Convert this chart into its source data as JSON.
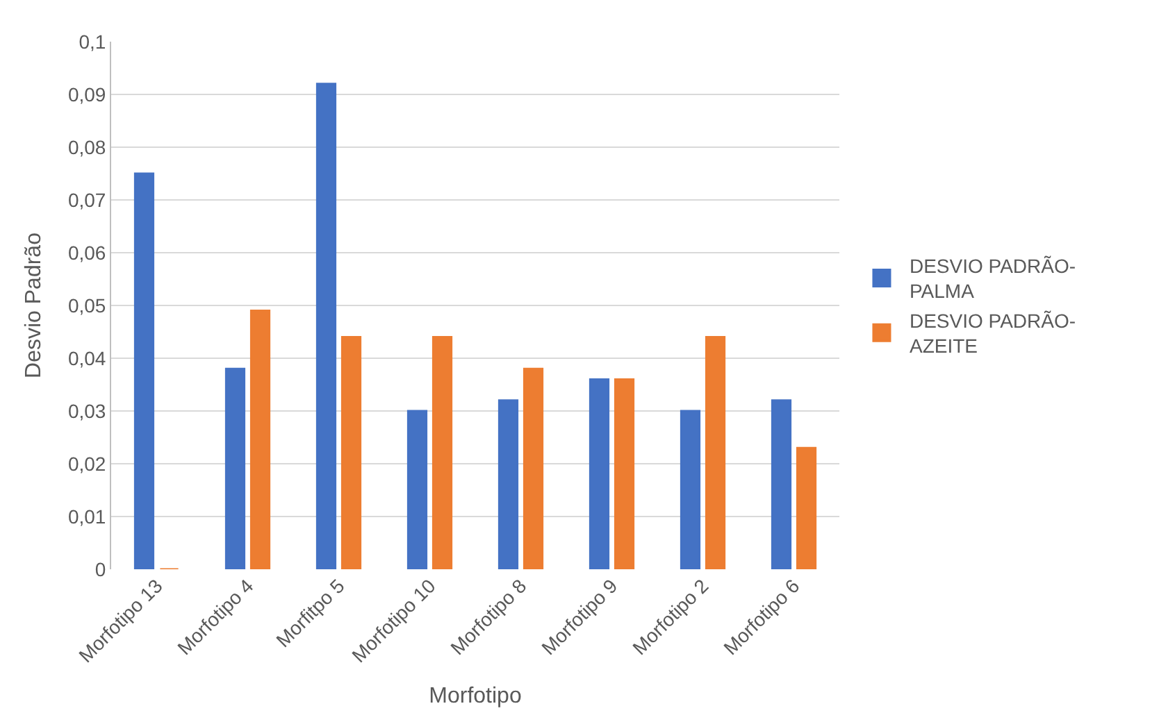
{
  "chart_data": {
    "type": "bar",
    "xlabel": "Morfotipo",
    "ylabel": "Desvio Padrão",
    "categories": [
      "Morfotipo 13",
      "Morfotipo 4",
      "Morfitpo 5",
      "Morfotipo 10",
      "Morfotipo 8",
      "Morfotipo 9",
      "Morfotipo 2",
      "Morfotipo 6"
    ],
    "series": [
      {
        "name": "DESVIO PADRÃO-PALMA",
        "color": "#4472c4",
        "values": [
          0.075,
          0.038,
          0.092,
          0.03,
          0.032,
          0.036,
          0.03,
          0.032
        ]
      },
      {
        "name": "DESVIO PADRÃO-AZEITE",
        "color": "#ed7d31",
        "values": [
          0,
          0.049,
          0.044,
          0.044,
          0.038,
          0.036,
          0.044,
          0.023
        ]
      }
    ],
    "ylim": [
      0,
      0.1
    ],
    "yticks": [
      0,
      {
        "value": 0.01,
        "label": "0,01"
      },
      {
        "value": 0.02,
        "label": "0,02"
      },
      {
        "value": 0.03,
        "label": "0,03"
      },
      {
        "value": 0.04,
        "label": "0,04"
      },
      {
        "value": 0.05,
        "label": "0,05"
      },
      {
        "value": 0.06,
        "label": "0,06"
      },
      {
        "value": 0.07,
        "label": "0,07"
      },
      {
        "value": 0.08,
        "label": "0,08"
      },
      {
        "value": 0.09,
        "label": "0,09"
      },
      {
        "value": 0.1,
        "label": "0,1"
      }
    ],
    "grid": "y",
    "legend": "right"
  }
}
